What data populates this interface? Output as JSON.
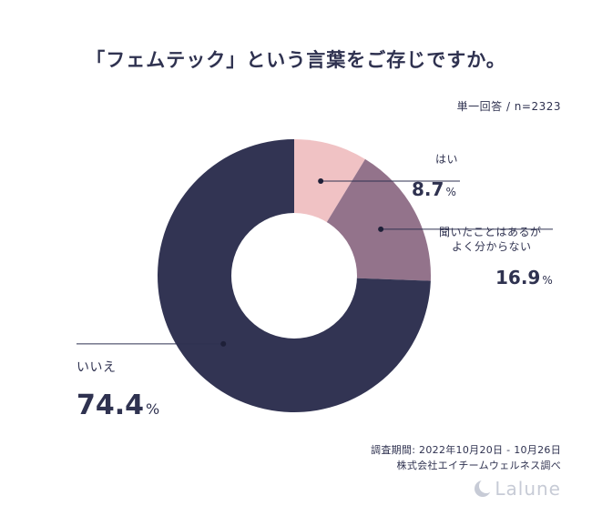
{
  "chart_data": {
    "type": "pie",
    "title": "「フェムテック」という言葉をご存じですか。",
    "subtitle": "単一回答 / n=2323",
    "slices": [
      {
        "label": "はい",
        "value": 8.7,
        "color": "#f0c2c4"
      },
      {
        "label": "聞いたことはあるがよく分からない",
        "label_lines": [
          "聞いたことはあるが",
          "よく分からない"
        ],
        "value": 16.9,
        "color": "#93738b"
      },
      {
        "label": "いいえ",
        "value": 74.4,
        "color": "#323453"
      }
    ],
    "value_labels": [
      "8.7",
      "16.9",
      "74.4"
    ],
    "unit": "%",
    "donut": true
  },
  "footer": {
    "survey_period": "調査期間: 2022年10月20日 - 10月26日",
    "surveyor": "株式会社エイチームウェルネス調べ",
    "brand": "Lalune"
  }
}
